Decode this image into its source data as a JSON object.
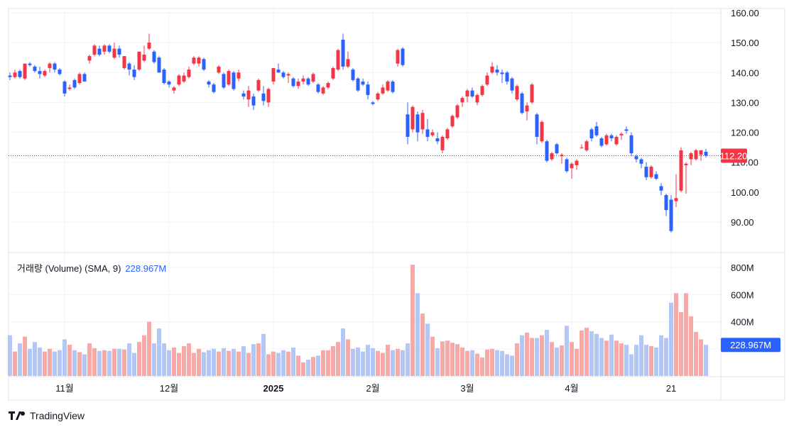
{
  "chart_data": {
    "type": "candlestick",
    "price_axis": {
      "ticks": [
        "160.00",
        "150.00",
        "140.00",
        "130.00",
        "120.00",
        "110.00",
        "100.00",
        "90.00"
      ],
      "range": [
        82,
        162
      ]
    },
    "last_price": {
      "value": 112.2,
      "label": "112.20"
    },
    "volume_axis": {
      "ticks": [
        "800M",
        "600M",
        "400M"
      ],
      "range": [
        0,
        880
      ]
    },
    "volume_legend": {
      "label": "거래량 (Volume) (SMA, 9)",
      "sma_value": "228.967M"
    },
    "x_ticks": [
      {
        "label": "11월",
        "index": 11,
        "bold": false
      },
      {
        "label": "12월",
        "index": 32,
        "bold": false
      },
      {
        "label": "2025",
        "index": 53,
        "bold": true
      },
      {
        "label": "2월",
        "index": 73,
        "bold": false
      },
      {
        "label": "3월",
        "index": 92,
        "bold": false
      },
      {
        "label": "4월",
        "index": 113,
        "bold": false
      },
      {
        "label": "21",
        "index": 133,
        "bold": false
      }
    ],
    "candles": [
      [
        139.0,
        140.0,
        137.5,
        138.5,
        300
      ],
      [
        138.5,
        141.0,
        138.0,
        140.0,
        180
      ],
      [
        140.5,
        141.0,
        138.0,
        138.5,
        240
      ],
      [
        138.0,
        143.0,
        137.5,
        143.0,
        290
      ],
      [
        143.0,
        143.5,
        142.0,
        142.5,
        200
      ],
      [
        142.0,
        142.5,
        140.0,
        140.5,
        250
      ],
      [
        140.5,
        142.0,
        138.0,
        139.5,
        210
      ],
      [
        139.0,
        141.0,
        138.5,
        140.5,
        180
      ],
      [
        141.5,
        143.5,
        140.0,
        143.0,
        200
      ],
      [
        143.0,
        143.5,
        140.0,
        141.0,
        180
      ],
      [
        141.0,
        141.5,
        139.0,
        139.5,
        190
      ],
      [
        137.0,
        137.5,
        132.0,
        133.0,
        270
      ],
      [
        134.5,
        136.0,
        134.0,
        135.0,
        230
      ],
      [
        137.5,
        138.0,
        134.5,
        135.0,
        190
      ],
      [
        136.5,
        140.0,
        136.0,
        139.5,
        175
      ],
      [
        139.5,
        140.0,
        137.0,
        137.0,
        160
      ],
      [
        144.0,
        146.0,
        143.0,
        145.5,
        240
      ],
      [
        146.0,
        149.5,
        145.5,
        149.0,
        205
      ],
      [
        148.0,
        149.0,
        145.5,
        146.0,
        185
      ],
      [
        147.0,
        149.5,
        146.0,
        149.0,
        190
      ],
      [
        149.0,
        149.5,
        146.5,
        147.0,
        185
      ],
      [
        145.0,
        150.0,
        144.5,
        148.0,
        200
      ],
      [
        148.0,
        149.0,
        145.0,
        146.0,
        200
      ],
      [
        141.5,
        145.5,
        141.0,
        145.5,
        195
      ],
      [
        143.0,
        143.5,
        139.0,
        141.0,
        240
      ],
      [
        141.0,
        142.5,
        137.5,
        138.5,
        170
      ],
      [
        141.0,
        147.0,
        140.5,
        147.0,
        250
      ],
      [
        144.0,
        149.0,
        143.5,
        146.0,
        300
      ],
      [
        148.0,
        153.0,
        147.5,
        150.0,
        400
      ],
      [
        147.0,
        147.5,
        143.0,
        143.5,
        240
      ],
      [
        145.0,
        145.5,
        140.0,
        140.0,
        350
      ],
      [
        141.0,
        141.5,
        136.0,
        136.5,
        240
      ],
      [
        137.0,
        137.5,
        135.0,
        136.0,
        190
      ],
      [
        134.0,
        135.5,
        133.0,
        135.0,
        210
      ],
      [
        136.0,
        139.5,
        135.5,
        139.0,
        170
      ],
      [
        137.0,
        140.0,
        136.5,
        139.0,
        220
      ],
      [
        138.5,
        142.0,
        138.0,
        141.0,
        240
      ],
      [
        143.0,
        145.5,
        142.5,
        145.0,
        170
      ],
      [
        143.0,
        145.5,
        142.0,
        145.0,
        200
      ],
      [
        144.5,
        145.0,
        140.5,
        141.0,
        175
      ],
      [
        137.0,
        137.5,
        135.0,
        136.0,
        190
      ],
      [
        136.0,
        136.5,
        133.0,
        133.5,
        200
      ],
      [
        140.0,
        142.5,
        139.5,
        142.0,
        180
      ],
      [
        139.5,
        140.0,
        134.5,
        135.0,
        205
      ],
      [
        136.0,
        141.0,
        135.5,
        140.5,
        185
      ],
      [
        140.0,
        140.5,
        134.0,
        134.5,
        200
      ],
      [
        138.0,
        141.0,
        137.0,
        140.0,
        180
      ],
      [
        133.0,
        134.0,
        131.0,
        132.0,
        220
      ],
      [
        131.0,
        135.5,
        128.5,
        134.0,
        170
      ],
      [
        132.0,
        133.0,
        127.5,
        129.0,
        235
      ],
      [
        134.0,
        138.0,
        133.5,
        137.5,
        240
      ],
      [
        133.0,
        135.5,
        129.0,
        130.5,
        310
      ],
      [
        130.0,
        135.0,
        128.5,
        134.5,
        160
      ],
      [
        137.0,
        141.5,
        136.0,
        141.5,
        180
      ],
      [
        141.0,
        143.0,
        140.0,
        140.0,
        170
      ],
      [
        140.0,
        140.5,
        138.0,
        138.5,
        190
      ],
      [
        139.0,
        140.0,
        136.5,
        139.5,
        180
      ],
      [
        138.0,
        138.5,
        135.0,
        135.5,
        210
      ],
      [
        135.5,
        138.0,
        134.5,
        137.0,
        150
      ],
      [
        137.0,
        139.0,
        136.0,
        138.0,
        100
      ],
      [
        138.0,
        138.5,
        135.5,
        136.0,
        120
      ],
      [
        137.0,
        140.0,
        136.5,
        139.5,
        140
      ],
      [
        136.0,
        136.5,
        133.0,
        133.5,
        150
      ],
      [
        133.0,
        135.5,
        132.5,
        135.0,
        190
      ],
      [
        135.0,
        137.0,
        134.5,
        136.5,
        190
      ],
      [
        138.0,
        142.0,
        137.5,
        141.5,
        220
      ],
      [
        141.0,
        148.0,
        140.5,
        147.5,
        250
      ],
      [
        151.0,
        153.0,
        141.0,
        142.0,
        350
      ],
      [
        142.0,
        147.0,
        141.5,
        144.5,
        270
      ],
      [
        141.0,
        141.5,
        137.0,
        137.5,
        200
      ],
      [
        138.0,
        138.5,
        133.5,
        134.0,
        210
      ],
      [
        137.0,
        138.0,
        135.5,
        136.0,
        180
      ],
      [
        136.0,
        137.0,
        131.0,
        132.5,
        230
      ],
      [
        130.0,
        130.5,
        129.0,
        129.5,
        205
      ],
      [
        131.0,
        133.5,
        130.5,
        133.0,
        185
      ],
      [
        133.0,
        136.0,
        132.5,
        135.0,
        170
      ],
      [
        134.0,
        137.5,
        133.5,
        137.0,
        230
      ],
      [
        137.0,
        137.5,
        133.0,
        133.5,
        190
      ],
      [
        143.0,
        148.0,
        142.0,
        147.5,
        200
      ],
      [
        148.0,
        148.5,
        142.0,
        142.5,
        190
      ],
      [
        126.0,
        130.0,
        116.0,
        118.5,
        240
      ],
      [
        121.0,
        129.0,
        120.0,
        128.5,
        820
      ],
      [
        126.0,
        127.0,
        117.0,
        120.0,
        610
      ],
      [
        121.0,
        127.5,
        119.5,
        126.5,
        460
      ],
      [
        121.0,
        124.5,
        117.0,
        118.5,
        385
      ],
      [
        119.0,
        121.0,
        118.5,
        120.0,
        290
      ],
      [
        118.0,
        120.0,
        116.0,
        117.0,
        205
      ],
      [
        114.0,
        119.0,
        113.0,
        118.5,
        255
      ],
      [
        118.0,
        121.5,
        117.5,
        121.0,
        260
      ],
      [
        122.0,
        126.0,
        121.5,
        125.5,
        245
      ],
      [
        125.0,
        129.5,
        124.5,
        129.0,
        235
      ],
      [
        130.0,
        132.0,
        128.5,
        131.5,
        210
      ],
      [
        132.0,
        134.5,
        130.0,
        134.0,
        185
      ],
      [
        134.0,
        135.0,
        131.5,
        132.0,
        190
      ],
      [
        130.0,
        133.0,
        129.0,
        132.5,
        165
      ],
      [
        132.5,
        136.0,
        132.0,
        135.5,
        135
      ],
      [
        136.0,
        140.0,
        135.5,
        139.0,
        195
      ],
      [
        140.0,
        143.5,
        139.5,
        142.0,
        200
      ],
      [
        141.0,
        142.5,
        139.0,
        140.0,
        190
      ],
      [
        140.0,
        141.0,
        136.5,
        139.5,
        185
      ],
      [
        140.0,
        140.5,
        136.0,
        137.0,
        160
      ],
      [
        138.0,
        138.5,
        133.0,
        134.0,
        150
      ],
      [
        131.0,
        136.0,
        130.5,
        135.5,
        240
      ],
      [
        133.0,
        133.5,
        126.0,
        126.5,
        300
      ],
      [
        127.0,
        130.0,
        124.0,
        129.0,
        320
      ],
      [
        130.0,
        136.5,
        129.5,
        136.0,
        280
      ],
      [
        126.0,
        126.5,
        116.0,
        118.5,
        280
      ],
      [
        117.0,
        124.0,
        116.5,
        123.5,
        300
      ],
      [
        117.0,
        117.5,
        110.0,
        110.5,
        340
      ],
      [
        111.0,
        113.5,
        110.5,
        113.0,
        250
      ],
      [
        116.0,
        116.5,
        112.5,
        113.0,
        210
      ],
      [
        112.0,
        113.0,
        109.5,
        112.5,
        225
      ],
      [
        111.0,
        111.5,
        106.5,
        107.0,
        370
      ],
      [
        108.0,
        110.0,
        104.5,
        109.5,
        250
      ],
      [
        109.0,
        111.0,
        107.5,
        110.5,
        200
      ],
      [
        115.0,
        116.0,
        114.5,
        115.0,
        335
      ],
      [
        114.0,
        117.5,
        113.5,
        117.0,
        355
      ],
      [
        121.0,
        121.5,
        117.0,
        118.0,
        330
      ],
      [
        122.0,
        123.5,
        118.5,
        119.0,
        310
      ],
      [
        118.0,
        118.5,
        115.0,
        115.5,
        280
      ],
      [
        116.0,
        119.5,
        115.5,
        119.0,
        260
      ],
      [
        119.0,
        119.5,
        117.0,
        118.0,
        305
      ],
      [
        116.0,
        119.0,
        115.5,
        118.5,
        260
      ],
      [
        119.0,
        120.0,
        117.5,
        119.5,
        240
      ],
      [
        121.0,
        122.0,
        119.5,
        120.5,
        230
      ],
      [
        119.0,
        120.0,
        112.0,
        113.0,
        160
      ],
      [
        112.0,
        112.5,
        110.0,
        111.0,
        230
      ],
      [
        111.0,
        111.5,
        108.0,
        109.5,
        300
      ],
      [
        108.5,
        110.0,
        104.0,
        105.0,
        230
      ],
      [
        105.0,
        109.0,
        104.5,
        108.5,
        220
      ],
      [
        106.0,
        107.0,
        104.0,
        104.5,
        210
      ],
      [
        102.0,
        103.0,
        99.0,
        100.5,
        300
      ],
      [
        99.0,
        99.5,
        92.0,
        94.0,
        280
      ],
      [
        97.5,
        99.0,
        86.5,
        87.0,
        540
      ],
      [
        97.0,
        106.0,
        95.0,
        98.0,
        610
      ],
      [
        100.5,
        115.0,
        100.0,
        114.0,
        470
      ],
      [
        109.0,
        110.0,
        99.5,
        109.5,
        610
      ],
      [
        111.0,
        113.5,
        109.0,
        113.0,
        440
      ],
      [
        111.0,
        114.5,
        110.5,
        114.0,
        325
      ],
      [
        112.5,
        114.0,
        110.5,
        114.0,
        270
      ],
      [
        113.5,
        114.5,
        111.5,
        112.2,
        230
      ]
    ]
  }
}
